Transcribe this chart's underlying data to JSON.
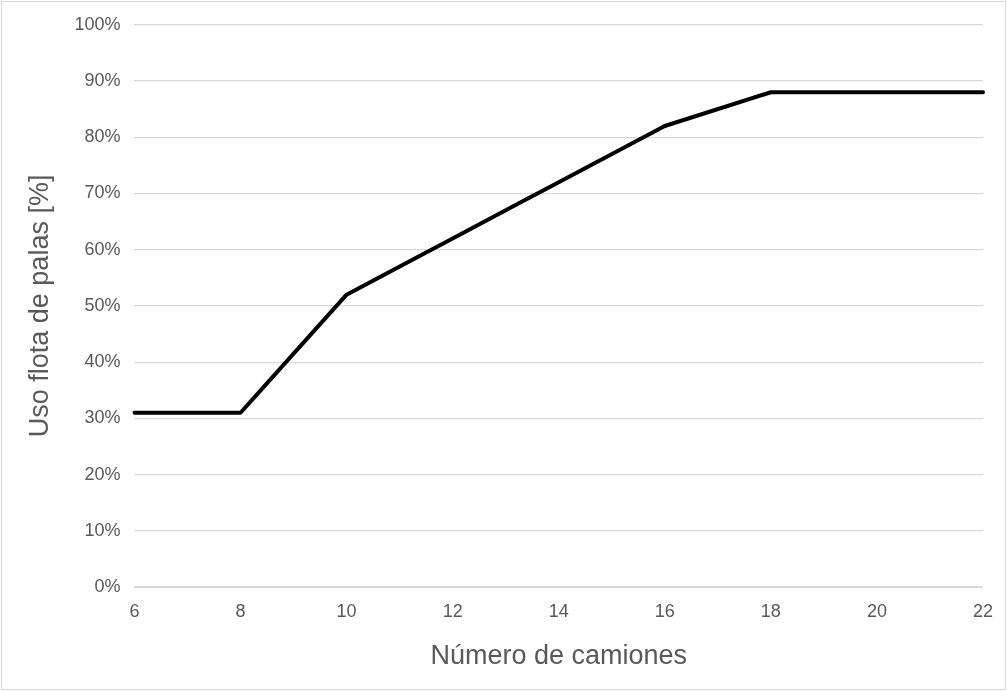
{
  "chart_data": {
    "type": "line",
    "xlabel": "Número de camiones",
    "ylabel": "Uso flota de palas [%]",
    "categories": [
      "6",
      "8",
      "10",
      "12",
      "14",
      "16",
      "18",
      "20",
      "22"
    ],
    "series": [
      {
        "color": "#000000",
        "values": [
          31,
          31,
          52,
          62,
          72,
          82,
          88,
          88,
          88
        ]
      }
    ],
    "ylim": [
      0,
      100
    ],
    "yticks": [
      {
        "value": 0,
        "label": "0%"
      },
      {
        "value": 10,
        "label": "10%"
      },
      {
        "value": 20,
        "label": "20%"
      },
      {
        "value": 30,
        "label": "30%"
      },
      {
        "value": 40,
        "label": "40%"
      },
      {
        "value": 50,
        "label": "50%"
      },
      {
        "value": 60,
        "label": "60%"
      },
      {
        "value": 70,
        "label": "70%"
      },
      {
        "value": 80,
        "label": "80%"
      },
      {
        "value": 90,
        "label": "90%"
      },
      {
        "value": 100,
        "label": "100%"
      }
    ],
    "grid": "y",
    "legend": false,
    "marker": "none",
    "line_style": "solid"
  }
}
